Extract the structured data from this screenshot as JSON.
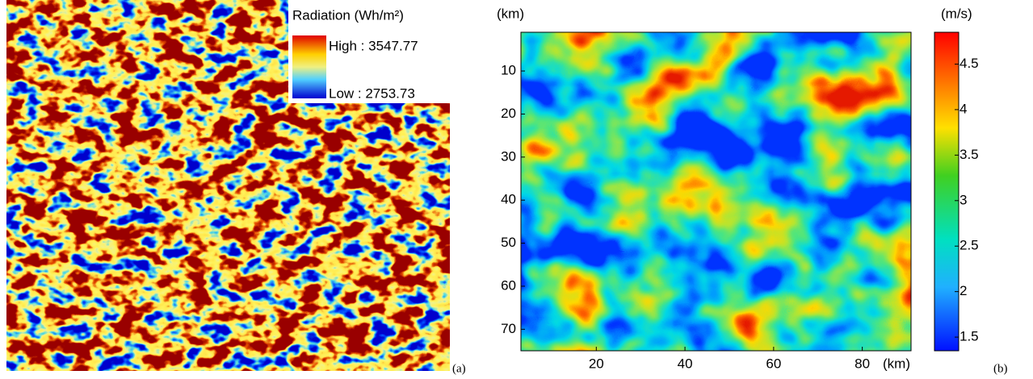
{
  "panel_a": {
    "legend_title": "Radiation (Wh/m²)",
    "high_label": "High : 3547.77",
    "low_label": "Low : 2753.73",
    "label": "(a)"
  },
  "panel_b": {
    "y_unit": "(km)",
    "x_unit": "(km)",
    "colorbar_unit": "(m/s)",
    "label": "(b)",
    "xlim": [
      3,
      91
    ],
    "ylim": [
      1,
      75
    ],
    "xticks": [
      20,
      40,
      60,
      80
    ],
    "yticks": [
      10,
      20,
      30,
      40,
      50,
      60,
      70
    ],
    "colorbar_lim": [
      1.35,
      4.85
    ],
    "colorbar_ticks": [
      1.5,
      2,
      2.5,
      3,
      3.5,
      4,
      4.5
    ]
  }
}
